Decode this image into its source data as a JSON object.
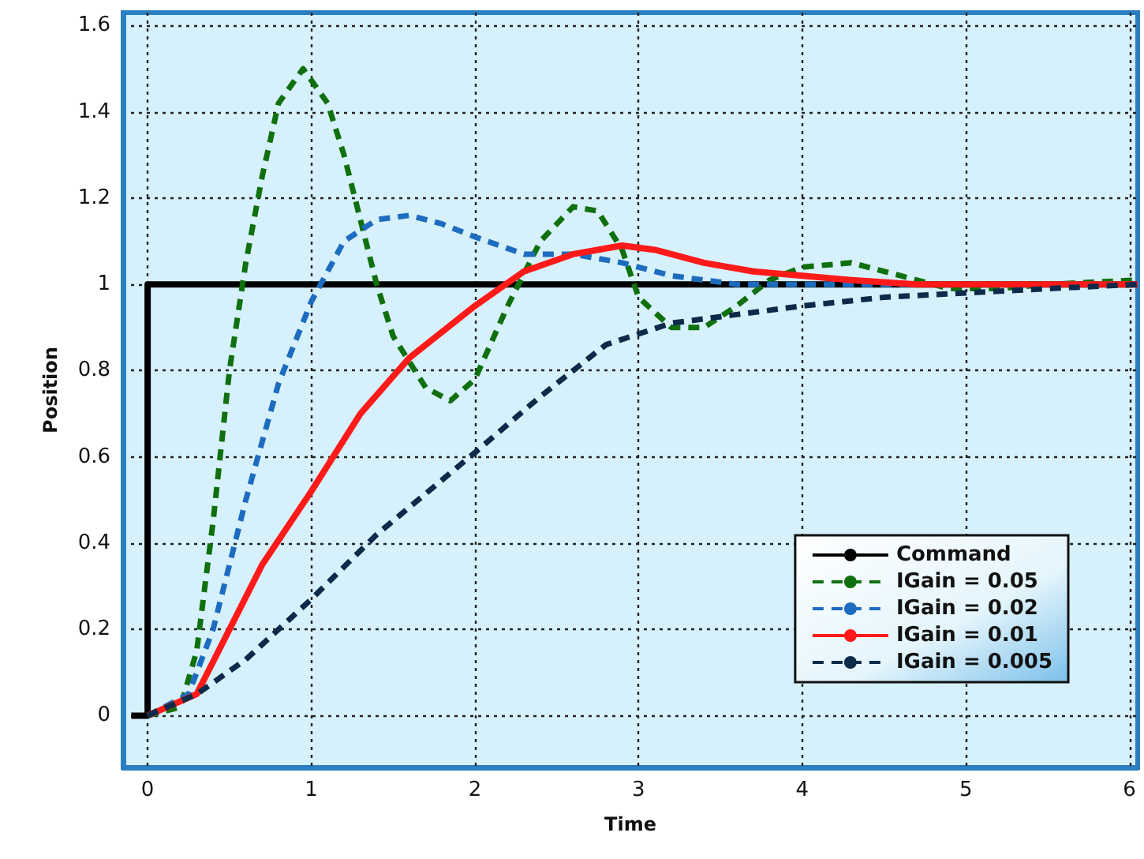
{
  "chart_data": {
    "type": "line",
    "xlabel": "Time",
    "ylabel": "Position",
    "xlim": [
      -0.15,
      6.05
    ],
    "ylim": [
      -0.12,
      1.63
    ],
    "xticks": [
      0,
      1,
      2,
      3,
      4,
      5,
      6
    ],
    "yticks": [
      0,
      0.2,
      0.4,
      0.6,
      0.8,
      1,
      1.2,
      1.4,
      1.6
    ],
    "grid": true,
    "legend": "bottom right",
    "marker": "none",
    "series": [
      {
        "name": "Command",
        "color": "#000000",
        "line_style": "solid",
        "x": [
          -0.1,
          0,
          0,
          6.05
        ],
        "values": [
          0,
          0,
          1,
          1
        ]
      },
      {
        "name": "IGain = 0.05",
        "color": "#10700f",
        "line_style": "dashed",
        "x": [
          0,
          0.2,
          0.3,
          0.4,
          0.5,
          0.6,
          0.7,
          0.8,
          0.95,
          1.1,
          1.2,
          1.3,
          1.4,
          1.5,
          1.7,
          1.85,
          2.0,
          2.2,
          2.4,
          2.6,
          2.75,
          2.9,
          3.0,
          3.2,
          3.4,
          3.6,
          3.8,
          4.0,
          4.3,
          4.6,
          4.9,
          5.2,
          5.5,
          6.05
        ],
        "values": [
          0,
          0.02,
          0.15,
          0.45,
          0.8,
          1.05,
          1.25,
          1.42,
          1.5,
          1.42,
          1.3,
          1.15,
          1.0,
          0.88,
          0.76,
          0.73,
          0.78,
          0.95,
          1.1,
          1.18,
          1.17,
          1.08,
          0.97,
          0.9,
          0.9,
          0.95,
          1.01,
          1.04,
          1.05,
          1.02,
          0.99,
          0.99,
          1.0,
          1.01
        ]
      },
      {
        "name": "IGain = 0.02",
        "color": "#1d6cbf",
        "line_style": "dashed",
        "x": [
          0,
          0.25,
          0.4,
          0.6,
          0.8,
          1.0,
          1.2,
          1.4,
          1.6,
          1.8,
          2.0,
          2.3,
          2.6,
          2.9,
          3.2,
          3.6,
          4.0,
          4.5,
          5.0,
          6.05
        ],
        "values": [
          0,
          0.05,
          0.2,
          0.5,
          0.77,
          0.96,
          1.1,
          1.15,
          1.16,
          1.14,
          1.11,
          1.07,
          1.07,
          1.05,
          1.02,
          1.0,
          1.0,
          1.0,
          1.0,
          1.0
        ]
      },
      {
        "name": "IGain = 0.01",
        "color": "#ff1a1a",
        "line_style": "solid",
        "x": [
          0,
          0.3,
          0.5,
          0.7,
          1.0,
          1.3,
          1.6,
          2.0,
          2.3,
          2.6,
          2.9,
          3.1,
          3.4,
          3.7,
          4.0,
          4.3,
          4.7,
          5.2,
          6.05
        ],
        "values": [
          0,
          0.05,
          0.2,
          0.35,
          0.52,
          0.7,
          0.83,
          0.95,
          1.03,
          1.07,
          1.09,
          1.08,
          1.05,
          1.03,
          1.02,
          1.01,
          1.0,
          1.0,
          1.0
        ]
      },
      {
        "name": "IGain = 0.005",
        "color": "#0d2a4a",
        "line_style": "dashed",
        "x": [
          0,
          0.3,
          0.6,
          1.0,
          1.4,
          2.0,
          2.4,
          2.8,
          3.2,
          3.6,
          4.0,
          4.5,
          5.0,
          5.5,
          6.05
        ],
        "values": [
          0,
          0.05,
          0.13,
          0.27,
          0.42,
          0.61,
          0.74,
          0.86,
          0.91,
          0.93,
          0.95,
          0.97,
          0.98,
          0.99,
          1.0
        ]
      }
    ]
  }
}
